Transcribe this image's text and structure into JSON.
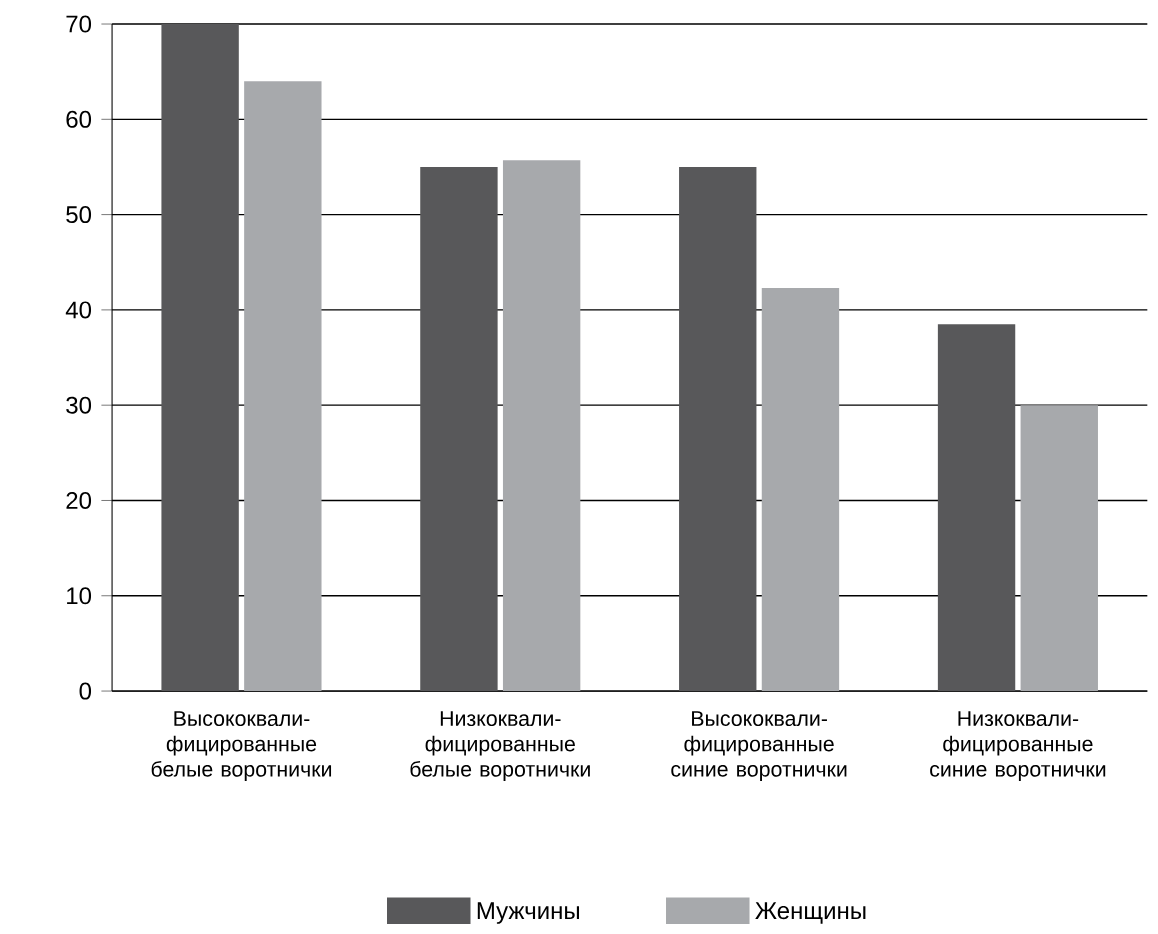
{
  "chart_data": {
    "type": "bar",
    "categories": [
      "Высококвали-фицированные белые воротнички",
      "Низкоквали-фицированные белые воротнички",
      "Высококвали-фицированные синие воротнички",
      "Низкоквали-фицированные синие воротнички"
    ],
    "series": [
      {
        "name": "Мужчины",
        "color": "#58585a",
        "values": [
          70,
          55,
          55,
          38.5
        ]
      },
      {
        "name": "Женщины",
        "color": "#a7a9ac",
        "values": [
          64,
          55.7,
          42.3,
          30
        ]
      }
    ],
    "ylim": [
      0,
      70
    ],
    "yticks": [
      0,
      10,
      20,
      30,
      40,
      50,
      60,
      70
    ],
    "grid": "y",
    "legend": "bottom"
  }
}
